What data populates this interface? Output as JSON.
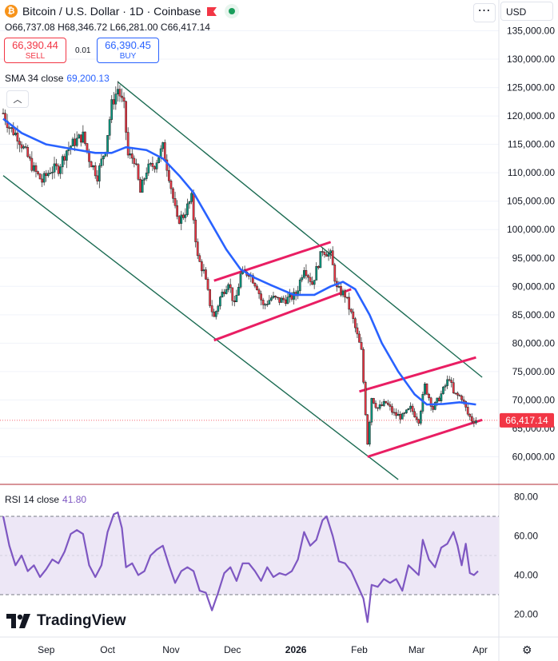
{
  "header": {
    "title": "Bitcoin / U.S. Dollar · 1D · Coinbase",
    "ohlc": {
      "o_label": "O",
      "o": "66,737.08",
      "h_label": "H",
      "h": "68,346.72",
      "l_label": "L",
      "l": "66,281.00",
      "c_label": "C",
      "c": "66,417.14"
    }
  },
  "trade": {
    "sell_price": "66,390.44",
    "sell_label": "SELL",
    "buy_price": "66,390.45",
    "buy_label": "BUY",
    "spread": "0.01"
  },
  "currency": "USD",
  "menu_icon": "more-dots-icon",
  "indicators": {
    "sma": {
      "label": "SMA 34 close",
      "value": "69,200.13"
    },
    "rsi": {
      "label": "RSI 14 close",
      "value": "41.80"
    }
  },
  "brand": {
    "name": "TradingView"
  },
  "colors": {
    "up": "#089981",
    "down": "#f23645",
    "sma": "#2962ff",
    "rsi": "#7e57c2",
    "channel": "#1b6b52",
    "pattern": "#e91e63",
    "rsi_band_fill": "#ede7f6"
  },
  "chart_data": [
    {
      "type": "candlestick",
      "title": "Bitcoin / U.S. Dollar · 1D · Coinbase",
      "ylim": [
        55000,
        140000
      ],
      "y_ticks": [
        60000,
        65000,
        70000,
        75000,
        80000,
        85000,
        90000,
        95000,
        100000,
        105000,
        110000,
        115000,
        120000,
        125000,
        130000,
        135000
      ],
      "y_tick_labels": [
        "60,000.00",
        "65,000.00",
        "70,000.00",
        "75,000.00",
        "80,000.00",
        "85,000.00",
        "90,000.00",
        "95,000.00",
        "100,000.00",
        "105,000.00",
        "110,000.00",
        "115,000.00",
        "120,000.00",
        "125,000.00",
        "130,000.00",
        "135,000.00"
      ],
      "x_ticks": [
        "Sep",
        "Oct",
        "Nov",
        "Dec",
        "2026",
        "Feb",
        "Mar",
        "Apr"
      ],
      "last_price": "66,417.14",
      "close_path": [
        [
          "Aug 11",
          120500
        ],
        [
          "Aug 14",
          118000
        ],
        [
          "Aug 18",
          116500
        ],
        [
          "Aug 22",
          113500
        ],
        [
          "Aug 26",
          110500
        ],
        [
          "Aug 30",
          108500
        ],
        [
          "Sep 3",
          110500
        ],
        [
          "Sep 7",
          110800
        ],
        [
          "Sep 11",
          114000
        ],
        [
          "Sep 15",
          115500
        ],
        [
          "Sep 19",
          116500
        ],
        [
          "Sep 22",
          112500
        ],
        [
          "Sep 26",
          109500
        ],
        [
          "Sep 30",
          114500
        ],
        [
          "Oct 3",
          122000
        ],
        [
          "Oct 6",
          124800
        ],
        [
          "Oct 9",
          121500
        ],
        [
          "Oct 11",
          113000
        ],
        [
          "Oct 14",
          112500
        ],
        [
          "Oct 17",
          106500
        ],
        [
          "Oct 20",
          110500
        ],
        [
          "Oct 24",
          111500
        ],
        [
          "Oct 28",
          114500
        ],
        [
          "Oct 31",
          109500
        ],
        [
          "Nov 4",
          101500
        ],
        [
          "Nov 7",
          102500
        ],
        [
          "Nov 11",
          105500
        ],
        [
          "Nov 14",
          95000
        ],
        [
          "Nov 17",
          92500
        ],
        [
          "Nov 20",
          87000
        ],
        [
          "Nov 22",
          84500
        ],
        [
          "Nov 25",
          88000
        ],
        [
          "Nov 29",
          91000
        ],
        [
          "Dec 2",
          86500
        ],
        [
          "Dec 5",
          92000
        ],
        [
          "Dec 9",
          92500
        ],
        [
          "Dec 13",
          90000
        ],
        [
          "Dec 16",
          86500
        ],
        [
          "Dec 20",
          88000
        ],
        [
          "Dec 24",
          87500
        ],
        [
          "Dec 28",
          87800
        ],
        [
          "Jan 1",
          88500
        ],
        [
          "Jan 5",
          93500
        ],
        [
          "Jan 9",
          90500
        ],
        [
          "Jan 14",
          96500
        ],
        [
          "Jan 18",
          95500
        ],
        [
          "Jan 21",
          89500
        ],
        [
          "Jan 25",
          88500
        ],
        [
          "Jan 29",
          84000
        ],
        [
          "Feb 2",
          78500
        ],
        [
          "Feb 5",
          62500
        ],
        [
          "Feb 7",
          70500
        ],
        [
          "Feb 10",
          68500
        ],
        [
          "Feb 14",
          69500
        ],
        [
          "Feb 18",
          67500
        ],
        [
          "Feb 22",
          67000
        ],
        [
          "Feb 26",
          68500
        ],
        [
          "Mar 2",
          66500
        ],
        [
          "Mar 5",
          72500
        ],
        [
          "Mar 9",
          68500
        ],
        [
          "Mar 13",
          71000
        ],
        [
          "Mar 17",
          74000
        ],
        [
          "Mar 19",
          71000
        ],
        [
          "Mar 23",
          70500
        ],
        [
          "Mar 26",
          67500
        ],
        [
          "Mar 28",
          66500
        ],
        [
          "Mar 30",
          66417
        ]
      ],
      "series": [
        {
          "name": "SMA 34 close",
          "points": [
            [
              "Aug 11",
              119500
            ],
            [
              "Aug 20",
              117000
            ],
            [
              "Sep 1",
              115000
            ],
            [
              "Sep 12",
              114300
            ],
            [
              "Sep 25",
              113500
            ],
            [
              "Oct 3",
              113500
            ],
            [
              "Oct 10",
              114500
            ],
            [
              "Oct 20",
              114000
            ],
            [
              "Oct 28",
              112500
            ],
            [
              "Nov 5",
              109500
            ],
            [
              "Nov 12",
              106500
            ],
            [
              "Nov 20",
              101500
            ],
            [
              "Nov 28",
              96500
            ],
            [
              "Dec 5",
              93000
            ],
            [
              "Dec 12",
              91500
            ],
            [
              "Dec 20",
              90200
            ],
            [
              "Dec 31",
              88500
            ],
            [
              "Jan 10",
              88500
            ],
            [
              "Jan 18",
              90000
            ],
            [
              "Jan 24",
              90800
            ],
            [
              "Jan 30",
              89500
            ],
            [
              "Feb 6",
              85000
            ],
            [
              "Feb 12",
              80000
            ],
            [
              "Feb 20",
              75000
            ],
            [
              "Feb 28",
              71000
            ],
            [
              "Mar 6",
              69200
            ],
            [
              "Mar 14",
              69300
            ],
            [
              "Mar 22",
              69600
            ],
            [
              "Mar 30",
              69200
            ]
          ]
        }
      ],
      "annotations": [
        {
          "kind": "descending-channel-upper",
          "from": [
            "Oct 6",
            126000
          ],
          "to": [
            "Apr 2",
            74000
          ]
        },
        {
          "kind": "descending-channel-lower",
          "from": [
            "Aug 11",
            109500
          ],
          "to": [
            "Feb 20",
            56000
          ]
        },
        {
          "kind": "rising-channel-upper",
          "from": [
            "Nov 22",
            91000
          ],
          "to": [
            "Jan 18",
            97800
          ]
        },
        {
          "kind": "rising-channel-lower",
          "from": [
            "Nov 22",
            80500
          ],
          "to": [
            "Jan 28",
            89500
          ]
        },
        {
          "kind": "rising-channel-upper",
          "from": [
            "Feb 1",
            71500
          ],
          "to": [
            "Mar 30",
            77500
          ]
        },
        {
          "kind": "rising-channel-lower",
          "from": [
            "Feb 5",
            60000
          ],
          "to": [
            "Apr 2",
            66500
          ]
        }
      ]
    },
    {
      "type": "line",
      "title": "RSI 14 close",
      "ylim": [
        12,
        82
      ],
      "y_ticks": [
        20,
        40,
        60,
        80
      ],
      "y_tick_labels": [
        "20.00",
        "40.00",
        "60.00",
        "80.00"
      ],
      "bands": [
        30,
        70
      ],
      "series": [
        {
          "name": "RSI 14 close",
          "points": [
            [
              "Aug 11",
              70
            ],
            [
              "Aug 14",
              55
            ],
            [
              "Aug 17",
              45
            ],
            [
              "Aug 20",
              50
            ],
            [
              "Aug 23",
              42
            ],
            [
              "Aug 26",
              45
            ],
            [
              "Aug 29",
              39
            ],
            [
              "Sep 1",
              43
            ],
            [
              "Sep 4",
              48
            ],
            [
              "Sep 7",
              46
            ],
            [
              "Sep 10",
              52
            ],
            [
              "Sep 13",
              61
            ],
            [
              "Sep 16",
              63
            ],
            [
              "Sep 19",
              61
            ],
            [
              "Sep 22",
              45
            ],
            [
              "Sep 25",
              39
            ],
            [
              "Sep 28",
              45
            ],
            [
              "Oct 1",
              62
            ],
            [
              "Oct 4",
              71
            ],
            [
              "Oct 6",
              72
            ],
            [
              "Oct 8",
              64
            ],
            [
              "Oct 10",
              44
            ],
            [
              "Oct 13",
              46
            ],
            [
              "Oct 16",
              40
            ],
            [
              "Oct 19",
              42
            ],
            [
              "Oct 22",
              50
            ],
            [
              "Oct 25",
              53
            ],
            [
              "Oct 28",
              55
            ],
            [
              "Oct 31",
              45
            ],
            [
              "Nov 3",
              36
            ],
            [
              "Nov 6",
              42
            ],
            [
              "Nov 9",
              44
            ],
            [
              "Nov 12",
              42
            ],
            [
              "Nov 15",
              32
            ],
            [
              "Nov 18",
              31
            ],
            [
              "Nov 21",
              22
            ],
            [
              "Nov 24",
              31
            ],
            [
              "Nov 27",
              41
            ],
            [
              "Nov 30",
              44
            ],
            [
              "Dec 3",
              37
            ],
            [
              "Dec 6",
              46
            ],
            [
              "Dec 9",
              46
            ],
            [
              "Dec 12",
              42
            ],
            [
              "Dec 15",
              37
            ],
            [
              "Dec 18",
              44
            ],
            [
              "Dec 21",
              39
            ],
            [
              "Dec 24",
              41
            ],
            [
              "Dec 27",
              40
            ],
            [
              "Dec 30",
              42
            ],
            [
              "Jan 2",
              48
            ],
            [
              "Jan 5",
              62
            ],
            [
              "Jan 8",
              55
            ],
            [
              "Jan 11",
              58
            ],
            [
              "Jan 14",
              68
            ],
            [
              "Jan 16",
              70
            ],
            [
              "Jan 19",
              60
            ],
            [
              "Jan 22",
              47
            ],
            [
              "Jan 25",
              46
            ],
            [
              "Jan 28",
              42
            ],
            [
              "Jan 31",
              35
            ],
            [
              "Feb 3",
              28
            ],
            [
              "Feb 5",
              16
            ],
            [
              "Feb 7",
              35
            ],
            [
              "Feb 10",
              34
            ],
            [
              "Feb 13",
              38
            ],
            [
              "Feb 16",
              36
            ],
            [
              "Feb 19",
              38
            ],
            [
              "Feb 22",
              32
            ],
            [
              "Feb 25",
              45
            ],
            [
              "Feb 28",
              42
            ],
            [
              "Mar 2",
              40
            ],
            [
              "Mar 4",
              58
            ],
            [
              "Mar 7",
              48
            ],
            [
              "Mar 10",
              44
            ],
            [
              "Mar 13",
              54
            ],
            [
              "Mar 16",
              56
            ],
            [
              "Mar 19",
              62
            ],
            [
              "Mar 21",
              55
            ],
            [
              "Mar 23",
              45
            ],
            [
              "Mar 25",
              56
            ],
            [
              "Mar 27",
              41
            ],
            [
              "Mar 29",
              40
            ],
            [
              "Mar 31",
              42
            ]
          ]
        }
      ]
    }
  ]
}
